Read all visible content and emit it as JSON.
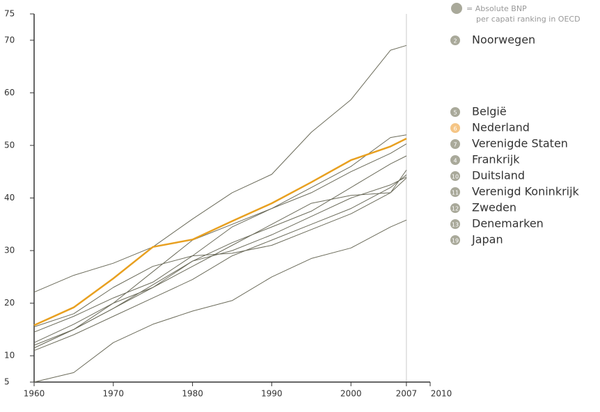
{
  "chart_data": {
    "type": "line",
    "legend_note": [
      "= Absolute BNP",
      "per capati ranking in OECD"
    ],
    "x": [
      1960,
      1965,
      1970,
      1975,
      1980,
      1985,
      1990,
      1995,
      2000,
      2005,
      2007
    ],
    "xlim": [
      1960,
      2010
    ],
    "xticks": [
      1960,
      1970,
      1980,
      1990,
      2000,
      2007,
      2010
    ],
    "ylim": [
      5,
      75
    ],
    "yticks": [
      5,
      10,
      20,
      30,
      40,
      50,
      60,
      70,
      75
    ],
    "vline": 2007,
    "series": [
      {
        "name": "Noorwegen",
        "rank": 2,
        "color": "#6b6b5a",
        "dot": "#a9a99a",
        "values": [
          22.1,
          25.3,
          27.6,
          30.7,
          36,
          41,
          44.5,
          52.5,
          58.7,
          68.1,
          69
        ]
      },
      {
        "name": "België",
        "rank": 5,
        "color": "#6b6b5a",
        "dot": "#a9a99a",
        "values": [
          12,
          15,
          20,
          26,
          32,
          35,
          38,
          42,
          46,
          51.5,
          52
        ]
      },
      {
        "name": "Nederland",
        "rank": 6,
        "color": "#e8a020",
        "dot": "#f5c585",
        "values": [
          15.8,
          19.2,
          24.7,
          30.7,
          32.1,
          35.6,
          39,
          43,
          47.2,
          49.8,
          51.3
        ]
      },
      {
        "name": "Verenigde Staten",
        "rank": 7,
        "color": "#6b6b5a",
        "dot": "#a9a99a",
        "values": [
          14.5,
          17.5,
          21,
          24,
          29,
          34.5,
          38,
          41,
          45,
          48.5,
          50.3
        ]
      },
      {
        "name": "Frankrijk",
        "rank": 4,
        "color": "#6b6b5a",
        "dot": "#a9a99a",
        "values": [
          11.5,
          15,
          19,
          23,
          28,
          31.5,
          34.5,
          37.5,
          42,
          46.5,
          48
        ]
      },
      {
        "name": "Duitsland",
        "rank": 10,
        "color": "#6b6b5a",
        "dot": "#a9a99a",
        "values": [
          12.5,
          16,
          20,
          23,
          27,
          31,
          35,
          39,
          40.5,
          41,
          45.3
        ]
      },
      {
        "name": "Verenigd Koninkrijk",
        "rank": 11,
        "color": "#6b6b5a",
        "dot": "#a9a99a",
        "values": [
          11,
          14,
          17.5,
          21,
          24.5,
          29,
          32,
          35,
          38,
          42,
          44.4
        ]
      },
      {
        "name": "Zweden",
        "rank": 12,
        "color": "#6b6b5a",
        "dot": "#a9a99a",
        "values": [
          15.5,
          18,
          23,
          27,
          29,
          29.5,
          31,
          34,
          37,
          41,
          43.8
        ]
      },
      {
        "name": "Denemarken",
        "rank": 13,
        "color": "#6b6b5a",
        "dot": "#a9a99a",
        "values": [
          11.5,
          15,
          19,
          23.5,
          28,
          30,
          33,
          36.5,
          40,
          42.5,
          44
        ]
      },
      {
        "name": "Japan",
        "rank": 19,
        "color": "#6b6b5a",
        "dot": "#a9a99a",
        "values": [
          5,
          6.8,
          12.5,
          16,
          18.5,
          20.5,
          25,
          28.5,
          30.5,
          34.5,
          35.8
        ]
      }
    ]
  }
}
